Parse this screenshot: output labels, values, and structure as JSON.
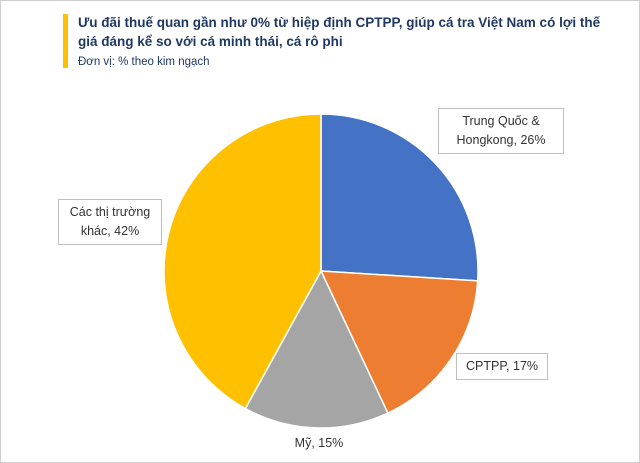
{
  "header": {
    "title": "Ưu đãi thuế quan gần như 0% từ hiệp định CPTPP, giúp cá tra Việt Nam có lợi thế giá đáng kể so với cá minh thái, cá rô phi",
    "subtitle": "Đơn vị: % theo kim ngạch",
    "accent_color": "#FFC000",
    "title_color": "#1F3864"
  },
  "chart_data": {
    "type": "pie",
    "title": "Ưu đãi thuế quan gần như 0% từ hiệp định CPTPP, giúp cá tra Việt Nam có lợi thế giá đáng kể so với cá minh thái, cá rô phi",
    "subtitle": "Đơn vị: % theo kim ngạch",
    "unit": "% theo kim ngạch",
    "start_angle_deg": 0,
    "direction": "clockwise",
    "legend_position": "none",
    "slices": [
      {
        "label": "Trung Quốc & Hongkong",
        "value": 26,
        "color": "#4472C4",
        "display": "Trung Quốc & Hongkong, 26%"
      },
      {
        "label": "CPTPP",
        "value": 17,
        "color": "#ED7D31",
        "display": "CPTPP, 17%"
      },
      {
        "label": "Mỹ",
        "value": 15,
        "color": "#A5A5A5",
        "display": "Mỹ, 15%"
      },
      {
        "label": "Các thị trường khác",
        "value": 42,
        "color": "#FFC000",
        "display": "Các thị trường khác, 42%"
      }
    ]
  }
}
